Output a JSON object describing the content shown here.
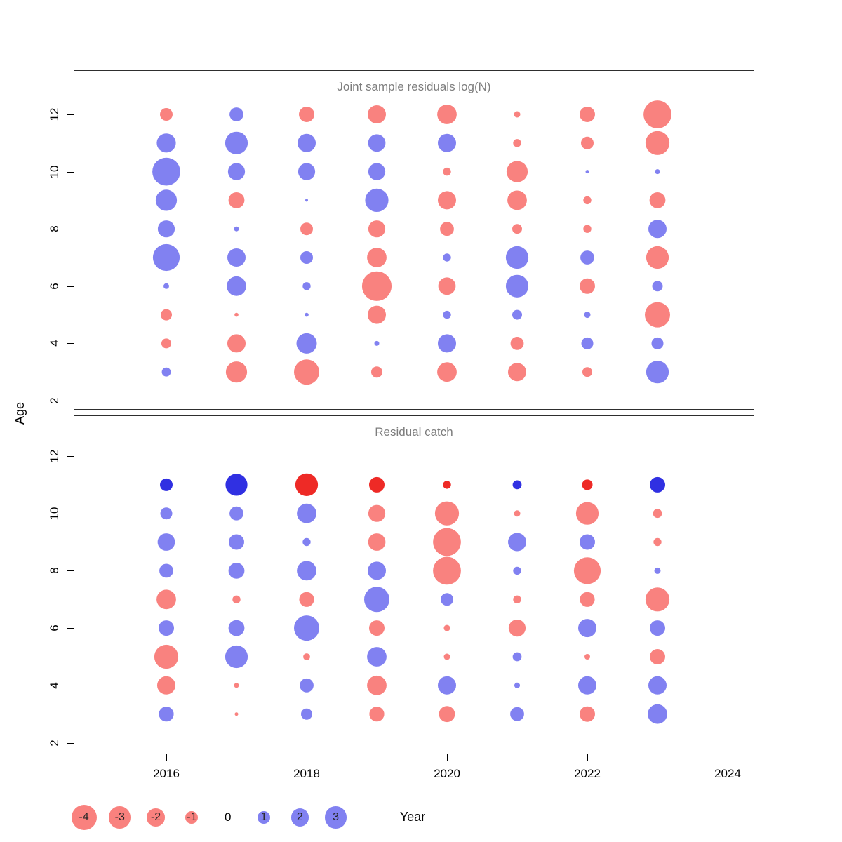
{
  "figure": {
    "background": "#ffffff",
    "title_color": "#7d7d7d",
    "axis_color": "#000000",
    "colors": {
      "negative_base": "#f30500",
      "positive_base": "#0303e3",
      "negative_light": "#f9817e",
      "positive_light": "#8181f1",
      "negative_strong": "#ee2a26",
      "positive_strong": "#3030e2",
      "bubble_opacity": 0.5
    },
    "y_axis": {
      "label": "Age",
      "ticks": [
        2,
        4,
        6,
        8,
        10,
        12
      ]
    },
    "x_axis": {
      "label": "Year",
      "ticks": [
        2016,
        2018,
        2020,
        2022,
        2024
      ]
    },
    "legend": {
      "values": [
        -4,
        -3,
        -2,
        -1,
        0,
        1,
        2,
        3
      ]
    }
  },
  "chart_data": [
    {
      "type": "bubble",
      "title": "Joint sample residuals log(N)",
      "xlabel": "Year",
      "ylabel": "Age",
      "x_range": [
        2014.7,
        2024.4
      ],
      "y_range": [
        1.5,
        13.1
      ],
      "sign_encoding": {
        "negative": "red",
        "positive": "blue"
      },
      "size_encoding": "circle radius proportional to sqrt(|residual|)",
      "point_format": [
        "year",
        "age",
        "residual"
      ],
      "points": [
        [
          2016,
          12,
          -1.0
        ],
        [
          2016,
          11,
          2.3
        ],
        [
          2016,
          10,
          4.9
        ],
        [
          2016,
          9,
          2.8
        ],
        [
          2016,
          8,
          1.8
        ],
        [
          2016,
          7,
          4.5
        ],
        [
          2016,
          6,
          0.2
        ],
        [
          2016,
          5,
          -0.8
        ],
        [
          2016,
          4,
          -0.6
        ],
        [
          2016,
          3,
          0.5
        ],
        [
          2017,
          12,
          1.2
        ],
        [
          2017,
          11,
          3.2
        ],
        [
          2017,
          10,
          1.8
        ],
        [
          2017,
          9,
          -1.6
        ],
        [
          2017,
          8,
          0.15
        ],
        [
          2017,
          7,
          2.1
        ],
        [
          2017,
          6,
          2.4
        ],
        [
          2017,
          5,
          -0.1
        ],
        [
          2017,
          4,
          -2.1
        ],
        [
          2017,
          3,
          -2.8
        ],
        [
          2018,
          12,
          -1.5
        ],
        [
          2018,
          11,
          2.1
        ],
        [
          2018,
          10,
          1.8
        ],
        [
          2018,
          9,
          0.05
        ],
        [
          2018,
          8,
          -1.0
        ],
        [
          2018,
          7,
          1.0
        ],
        [
          2018,
          6,
          0.4
        ],
        [
          2018,
          5,
          0.1
        ],
        [
          2018,
          4,
          2.6
        ],
        [
          2018,
          3,
          -4.0
        ],
        [
          2019,
          12,
          -2.1
        ],
        [
          2019,
          11,
          1.9
        ],
        [
          2019,
          10,
          1.8
        ],
        [
          2019,
          9,
          3.4
        ],
        [
          2019,
          8,
          -1.8
        ],
        [
          2019,
          7,
          -2.4
        ],
        [
          2019,
          6,
          -5.5
        ],
        [
          2019,
          5,
          -2.1
        ],
        [
          2019,
          4,
          0.15
        ],
        [
          2019,
          3,
          -0.8
        ],
        [
          2020,
          12,
          -2.4
        ],
        [
          2020,
          11,
          2.1
        ],
        [
          2020,
          10,
          -0.4
        ],
        [
          2020,
          9,
          -2.1
        ],
        [
          2020,
          8,
          -1.2
        ],
        [
          2020,
          7,
          0.4
        ],
        [
          2020,
          6,
          -1.9
        ],
        [
          2020,
          5,
          0.4
        ],
        [
          2020,
          4,
          2.1
        ],
        [
          2020,
          3,
          -2.4
        ],
        [
          2021,
          12,
          -0.25
        ],
        [
          2021,
          11,
          -0.4
        ],
        [
          2021,
          10,
          -2.8
        ],
        [
          2021,
          9,
          -2.4
        ],
        [
          2021,
          8,
          -0.6
        ],
        [
          2021,
          7,
          3.2
        ],
        [
          2021,
          6,
          3.2
        ],
        [
          2021,
          5,
          0.6
        ],
        [
          2021,
          4,
          -1.1
        ],
        [
          2021,
          3,
          -2.1
        ],
        [
          2022,
          12,
          -1.5
        ],
        [
          2022,
          11,
          -1.0
        ],
        [
          2022,
          10,
          0.08
        ],
        [
          2022,
          9,
          -0.4
        ],
        [
          2022,
          8,
          -0.4
        ],
        [
          2022,
          7,
          1.2
        ],
        [
          2022,
          6,
          -1.5
        ],
        [
          2022,
          5,
          0.25
        ],
        [
          2022,
          4,
          0.9
        ],
        [
          2022,
          3,
          -0.6
        ],
        [
          2023,
          12,
          -4.9
        ],
        [
          2023,
          11,
          -3.6
        ],
        [
          2023,
          10,
          0.15
        ],
        [
          2023,
          9,
          -1.6
        ],
        [
          2023,
          8,
          2.1
        ],
        [
          2023,
          7,
          -3.2
        ],
        [
          2023,
          6,
          0.7
        ],
        [
          2023,
          5,
          -4.0
        ],
        [
          2023,
          4,
          0.9
        ],
        [
          2023,
          3,
          3.2
        ]
      ]
    },
    {
      "type": "bubble",
      "title": "Residual catch",
      "xlabel": "Year",
      "ylabel": "Age",
      "x_range": [
        2014.7,
        2024.4
      ],
      "y_range": [
        1.5,
        13.1
      ],
      "sign_encoding": {
        "negative": "red",
        "positive": "blue"
      },
      "size_encoding": "circle radius proportional to sqrt(|residual|)",
      "strong_row_age": 11,
      "point_format": [
        "year",
        "age",
        "residual"
      ],
      "points": [
        [
          2016,
          11,
          1.0
        ],
        [
          2016,
          10,
          0.9
        ],
        [
          2016,
          9,
          1.9
        ],
        [
          2016,
          8,
          1.2
        ],
        [
          2016,
          7,
          -2.4
        ],
        [
          2016,
          6,
          1.5
        ],
        [
          2016,
          5,
          -3.6
        ],
        [
          2016,
          4,
          -2.1
        ],
        [
          2016,
          3,
          1.4
        ],
        [
          2017,
          11,
          3.0
        ],
        [
          2017,
          10,
          1.2
        ],
        [
          2017,
          9,
          1.5
        ],
        [
          2017,
          8,
          1.6
        ],
        [
          2017,
          7,
          -0.4
        ],
        [
          2017,
          6,
          1.6
        ],
        [
          2017,
          5,
          3.2
        ],
        [
          2017,
          4,
          -0.15
        ],
        [
          2017,
          3,
          -0.08
        ],
        [
          2018,
          11,
          -3.2
        ],
        [
          2018,
          10,
          2.4
        ],
        [
          2018,
          9,
          0.4
        ],
        [
          2018,
          8,
          2.4
        ],
        [
          2018,
          7,
          -1.4
        ],
        [
          2018,
          6,
          4.0
        ],
        [
          2018,
          5,
          -0.3
        ],
        [
          2018,
          4,
          1.2
        ],
        [
          2018,
          3,
          0.8
        ],
        [
          2019,
          11,
          -1.5
        ],
        [
          2019,
          10,
          -1.8
        ],
        [
          2019,
          9,
          -1.9
        ],
        [
          2019,
          8,
          2.1
        ],
        [
          2019,
          7,
          4.0
        ],
        [
          2019,
          6,
          -1.5
        ],
        [
          2019,
          5,
          2.4
        ],
        [
          2019,
          4,
          -2.4
        ],
        [
          2019,
          3,
          -1.4
        ],
        [
          2020,
          11,
          -0.4
        ],
        [
          2020,
          10,
          -3.6
        ],
        [
          2020,
          9,
          -4.9
        ],
        [
          2020,
          8,
          -4.9
        ],
        [
          2020,
          7,
          1.0
        ],
        [
          2020,
          6,
          -0.25
        ],
        [
          2020,
          5,
          -0.25
        ],
        [
          2020,
          4,
          2.1
        ],
        [
          2020,
          3,
          -1.6
        ],
        [
          2021,
          11,
          0.5
        ],
        [
          2021,
          10,
          -0.25
        ],
        [
          2021,
          9,
          2.1
        ],
        [
          2021,
          8,
          0.4
        ],
        [
          2021,
          7,
          -0.4
        ],
        [
          2021,
          6,
          -1.8
        ],
        [
          2021,
          5,
          0.5
        ],
        [
          2021,
          4,
          0.2
        ],
        [
          2021,
          3,
          1.2
        ],
        [
          2022,
          11,
          -0.7
        ],
        [
          2022,
          10,
          -3.2
        ],
        [
          2022,
          9,
          1.5
        ],
        [
          2022,
          8,
          -4.5
        ],
        [
          2022,
          7,
          -1.4
        ],
        [
          2022,
          6,
          2.1
        ],
        [
          2022,
          5,
          -0.2
        ],
        [
          2022,
          4,
          2.1
        ],
        [
          2022,
          3,
          -1.5
        ],
        [
          2023,
          11,
          1.5
        ],
        [
          2023,
          10,
          -0.5
        ],
        [
          2023,
          9,
          -0.4
        ],
        [
          2023,
          8,
          0.25
        ],
        [
          2023,
          7,
          -3.6
        ],
        [
          2023,
          6,
          1.5
        ],
        [
          2023,
          5,
          -1.5
        ],
        [
          2023,
          4,
          2.1
        ],
        [
          2023,
          3,
          2.4
        ]
      ]
    }
  ]
}
